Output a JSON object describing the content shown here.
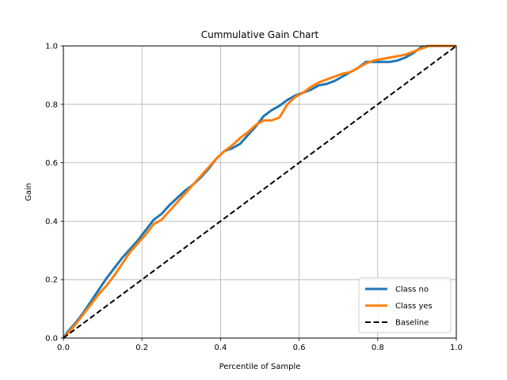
{
  "chart_data": {
    "type": "line",
    "title": "Cummulative Gain Chart",
    "xlabel": "Percentile of Sample",
    "ylabel": "Gain",
    "xlim": [
      0,
      1
    ],
    "ylim": [
      0,
      1
    ],
    "xticks": [
      "0.0",
      "0.2",
      "0.4",
      "0.6",
      "0.8",
      "1.0"
    ],
    "yticks": [
      "0.0",
      "0.2",
      "0.4",
      "0.6",
      "0.8",
      "1.0"
    ],
    "grid": true,
    "legend_position": "lower-right",
    "series": [
      {
        "name": "Class no",
        "color": "#1f77b4",
        "style": "solid",
        "points": [
          [
            0,
            0
          ],
          [
            0.01,
            0.02
          ],
          [
            0.03,
            0.05
          ],
          [
            0.05,
            0.085
          ],
          [
            0.07,
            0.125
          ],
          [
            0.09,
            0.165
          ],
          [
            0.11,
            0.205
          ],
          [
            0.13,
            0.24
          ],
          [
            0.15,
            0.275
          ],
          [
            0.17,
            0.305
          ],
          [
            0.19,
            0.335
          ],
          [
            0.21,
            0.37
          ],
          [
            0.23,
            0.405
          ],
          [
            0.25,
            0.425
          ],
          [
            0.27,
            0.455
          ],
          [
            0.29,
            0.48
          ],
          [
            0.31,
            0.505
          ],
          [
            0.33,
            0.525
          ],
          [
            0.35,
            0.55
          ],
          [
            0.37,
            0.58
          ],
          [
            0.39,
            0.615
          ],
          [
            0.41,
            0.64
          ],
          [
            0.43,
            0.65
          ],
          [
            0.45,
            0.665
          ],
          [
            0.47,
            0.695
          ],
          [
            0.49,
            0.725
          ],
          [
            0.51,
            0.76
          ],
          [
            0.53,
            0.78
          ],
          [
            0.55,
            0.795
          ],
          [
            0.57,
            0.815
          ],
          [
            0.59,
            0.83
          ],
          [
            0.61,
            0.84
          ],
          [
            0.63,
            0.85
          ],
          [
            0.65,
            0.865
          ],
          [
            0.67,
            0.87
          ],
          [
            0.69,
            0.88
          ],
          [
            0.71,
            0.895
          ],
          [
            0.73,
            0.91
          ],
          [
            0.75,
            0.925
          ],
          [
            0.77,
            0.945
          ],
          [
            0.79,
            0.945
          ],
          [
            0.81,
            0.945
          ],
          [
            0.83,
            0.945
          ],
          [
            0.85,
            0.95
          ],
          [
            0.87,
            0.96
          ],
          [
            0.89,
            0.975
          ],
          [
            0.91,
            0.995
          ],
          [
            0.93,
            1.0
          ],
          [
            1.0,
            1.0
          ]
        ]
      },
      {
        "name": "Class yes",
        "color": "#ff7f0e",
        "style": "solid",
        "points": [
          [
            0,
            0
          ],
          [
            0.01,
            0.015
          ],
          [
            0.03,
            0.045
          ],
          [
            0.05,
            0.08
          ],
          [
            0.07,
            0.115
          ],
          [
            0.09,
            0.15
          ],
          [
            0.11,
            0.18
          ],
          [
            0.13,
            0.215
          ],
          [
            0.15,
            0.255
          ],
          [
            0.17,
            0.295
          ],
          [
            0.19,
            0.325
          ],
          [
            0.21,
            0.355
          ],
          [
            0.23,
            0.39
          ],
          [
            0.25,
            0.405
          ],
          [
            0.27,
            0.435
          ],
          [
            0.29,
            0.465
          ],
          [
            0.31,
            0.495
          ],
          [
            0.33,
            0.525
          ],
          [
            0.35,
            0.555
          ],
          [
            0.37,
            0.585
          ],
          [
            0.39,
            0.615
          ],
          [
            0.41,
            0.64
          ],
          [
            0.43,
            0.66
          ],
          [
            0.45,
            0.685
          ],
          [
            0.47,
            0.705
          ],
          [
            0.49,
            0.73
          ],
          [
            0.51,
            0.745
          ],
          [
            0.53,
            0.745
          ],
          [
            0.55,
            0.755
          ],
          [
            0.57,
            0.8
          ],
          [
            0.59,
            0.825
          ],
          [
            0.61,
            0.84
          ],
          [
            0.63,
            0.86
          ],
          [
            0.65,
            0.875
          ],
          [
            0.67,
            0.885
          ],
          [
            0.69,
            0.895
          ],
          [
            0.71,
            0.905
          ],
          [
            0.73,
            0.91
          ],
          [
            0.75,
            0.925
          ],
          [
            0.77,
            0.94
          ],
          [
            0.79,
            0.95
          ],
          [
            0.81,
            0.955
          ],
          [
            0.83,
            0.96
          ],
          [
            0.85,
            0.965
          ],
          [
            0.87,
            0.97
          ],
          [
            0.89,
            0.98
          ],
          [
            0.91,
            0.99
          ],
          [
            0.93,
            1.0
          ],
          [
            1.0,
            1.0
          ]
        ]
      },
      {
        "name": "Baseline",
        "color": "#000000",
        "style": "dashed",
        "points": [
          [
            0,
            0
          ],
          [
            1,
            1
          ]
        ]
      }
    ]
  }
}
